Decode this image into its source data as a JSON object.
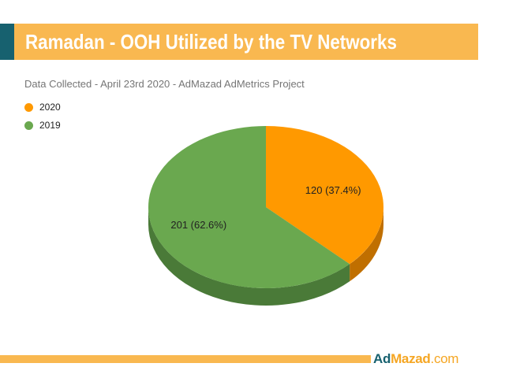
{
  "header": {
    "title": "Ramadan - OOH Utilized by the TV Networks",
    "subtitle": "Data Collected - April 23rd 2020 - AdMazad AdMetrics Project"
  },
  "chart_data": {
    "type": "pie",
    "style": "3d",
    "title": "Ramadan - OOH Utilized by the TV Networks",
    "subtitle": "Data Collected - April 23rd 2020 - AdMazad AdMetrics Project",
    "legend_position": "top-left",
    "series": [
      {
        "name": "2020",
        "value": 120,
        "percent": 37.4,
        "label": "120 (37.4%)",
        "color": "#ff9900",
        "side_color": "#c06f00"
      },
      {
        "name": "2019",
        "value": 201,
        "percent": 62.6,
        "label": "201 (62.6%)",
        "color": "#6aa84f",
        "side_color": "#4a7a38"
      }
    ]
  },
  "footer": {
    "brand_ad": "Ad",
    "brand_mazad": "Mazad",
    "brand_com": ".com"
  },
  "colors": {
    "accent_orange": "#f9b850",
    "accent_teal": "#17616f"
  }
}
